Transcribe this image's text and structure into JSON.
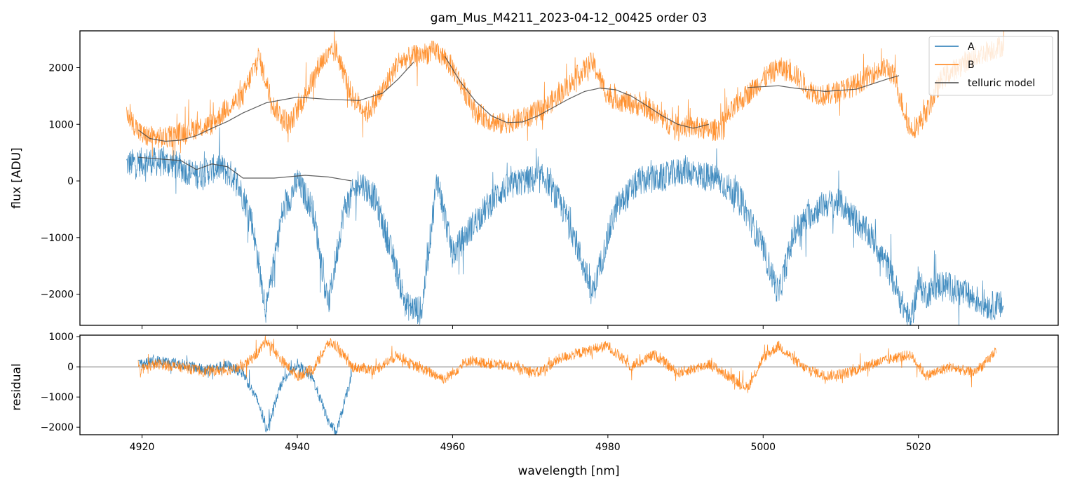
{
  "chart_data": [
    {
      "type": "line",
      "title": "gam_Mus_M4211_2023-04-12_00425  order 03",
      "ylabel": "flux [ADU]",
      "xlim": [
        4912,
        5038
      ],
      "ylim": [
        -2550,
        2650
      ],
      "yticks": [
        -2000,
        -1000,
        0,
        1000,
        2000
      ],
      "ytick_labels": [
        "−2000",
        "−1000",
        "0",
        "1000",
        "2000"
      ],
      "legend_position": "top-right",
      "legend": [
        "A",
        "B",
        "telluric model"
      ],
      "series": [
        {
          "name": "A",
          "color": "#1f77b4",
          "x": [
            4918,
            4921,
            4924,
            4927,
            4930,
            4932,
            4934,
            4936,
            4938,
            4940,
            4942,
            4944,
            4946,
            4948,
            4950,
            4952,
            4954,
            4956,
            4958,
            4960,
            4963,
            4966,
            4969,
            4972,
            4975,
            4978,
            4981,
            4984,
            4987,
            4990,
            4993,
            4994,
            4997,
            5000,
            5002,
            5004,
            5006,
            5008,
            5010,
            5012,
            5014,
            5016,
            5018,
            5019,
            5020,
            5021,
            5023,
            5026,
            5029,
            5031
          ],
          "y": [
            300,
            350,
            300,
            100,
            250,
            50,
            -600,
            -2300,
            -600,
            0,
            -500,
            -2200,
            -500,
            0,
            -300,
            -1200,
            -2200,
            -2300,
            50,
            -1300,
            -700,
            -200,
            0,
            50,
            -700,
            -2000,
            -500,
            0,
            50,
            200,
            50,
            50,
            -300,
            -1200,
            -2000,
            -900,
            -600,
            -400,
            -400,
            -700,
            -1000,
            -1500,
            -2200,
            -2500,
            -1800,
            -2000,
            -1800,
            -2000,
            -2200,
            -2200
          ],
          "noise": 260
        },
        {
          "name": "B",
          "color": "#ff7f0e",
          "x": [
            4918,
            4920,
            4923,
            4926,
            4929,
            4931,
            4933,
            4935,
            4937,
            4939,
            4941,
            4943,
            4945,
            4947,
            4949,
            4951,
            4953,
            4955,
            4958,
            4960,
            4963,
            4966,
            4969,
            4972,
            4975,
            4978,
            4980,
            4982,
            4985,
            4988,
            4991,
            4993,
            4994,
            4997,
            5000,
            5002,
            5004,
            5006,
            5008,
            5010,
            5012,
            5014,
            5016,
            5017,
            5018,
            5019,
            5020,
            5021,
            5023,
            5026,
            5029,
            5031
          ],
          "y": [
            1200,
            800,
            750,
            900,
            1000,
            1300,
            1500,
            2200,
            1300,
            1000,
            1500,
            2100,
            2300,
            1500,
            1200,
            1600,
            2100,
            2200,
            2300,
            2000,
            1200,
            1000,
            1100,
            1300,
            1700,
            2100,
            1500,
            1400,
            1300,
            1000,
            950,
            900,
            900,
            1400,
            1800,
            2000,
            1900,
            1600,
            1500,
            1600,
            1700,
            1900,
            2000,
            1800,
            1300,
            900,
            1000,
            1200,
            1800,
            2100,
            2300,
            2400
          ],
          "noise": 200
        },
        {
          "name": "telluric model",
          "color": "#444444",
          "segments": [
            {
              "x": [
                4919.5,
                4921,
                4923,
                4925,
                4927,
                4929,
                4931,
                4933,
                4936,
                4940,
                4944,
                4948,
                4951,
                4953,
                4955
              ],
              "y": [
                900,
                750,
                700,
                720,
                800,
                930,
                1050,
                1200,
                1380,
                1480,
                1440,
                1420,
                1550,
                1800,
                2100
              ]
            },
            {
              "x": [
                4959,
                4961,
                4963,
                4965,
                4967,
                4969,
                4971,
                4973,
                4975,
                4977,
                4979,
                4981,
                4983,
                4985,
                4987,
                4989,
                4991,
                4993
              ],
              "y": [
                2200,
                1750,
                1400,
                1150,
                1030,
                1040,
                1150,
                1300,
                1450,
                1580,
                1640,
                1610,
                1500,
                1330,
                1150,
                1000,
                930,
                1000
              ]
            },
            {
              "x": [
                4919.5,
                4921,
                4923,
                4925,
                4927,
                4929,
                4931,
                4933,
                4937,
                4941,
                4944,
                4947
              ],
              "y": [
                420,
                400,
                380,
                360,
                200,
                300,
                250,
                50,
                50,
                100,
                70,
                0
              ]
            },
            {
              "x": [
                4998,
                5002,
                5004,
                5008,
                5012,
                5016,
                5017.5
              ],
              "y": [
                1650,
                1680,
                1640,
                1580,
                1620,
                1800,
                1860
              ]
            }
          ]
        }
      ]
    },
    {
      "type": "line",
      "ylabel": "residual",
      "xlabel": "wavelength [nm]",
      "xlim": [
        4912,
        5038
      ],
      "ylim": [
        -2250,
        1050
      ],
      "xticks": [
        4920,
        4940,
        4960,
        4980,
        5000,
        5020
      ],
      "xtick_labels": [
        "4920",
        "4940",
        "4960",
        "4980",
        "5000",
        "5020"
      ],
      "yticks": [
        -2000,
        -1000,
        0,
        1000
      ],
      "ytick_labels": [
        "−2000",
        "−1000",
        "0",
        "1000"
      ],
      "zero_line": true,
      "series": [
        {
          "name": "A",
          "color": "#1f77b4",
          "x": [
            4919.5,
            4922,
            4925,
            4928,
            4931,
            4933,
            4935,
            4936,
            4938,
            4940,
            4942,
            4944,
            4945,
            4947
          ],
          "y": [
            100,
            200,
            100,
            -100,
            50,
            -200,
            -1200,
            -2100,
            -500,
            100,
            -400,
            -1800,
            -2200,
            -300
          ],
          "noise": 180
        },
        {
          "name": "B",
          "color": "#ff7f0e",
          "x": [
            4919.5,
            4922,
            4925,
            4928,
            4931,
            4933,
            4935,
            4936,
            4938,
            4940,
            4942,
            4944,
            4945,
            4947,
            4950,
            4953,
            4954.5,
            4959,
            4962,
            4965,
            4968,
            4971,
            4974,
            4977,
            4980,
            4983,
            4986,
            4989,
            4992,
            4993,
            4998,
            5000,
            5002,
            5005,
            5008,
            5011,
            5014,
            5017,
            5019,
            5021,
            5024,
            5027,
            5029,
            5030
          ],
          "y": [
            -100,
            100,
            0,
            -150,
            -100,
            0,
            500,
            900,
            200,
            -300,
            -100,
            800,
            700,
            0,
            -100,
            400,
            100,
            -400,
            200,
            100,
            0,
            -200,
            300,
            500,
            700,
            0,
            400,
            -200,
            0,
            100,
            -700,
            300,
            700,
            0,
            -300,
            -200,
            100,
            300,
            400,
            -300,
            0,
            -200,
            200,
            600
          ],
          "noise": 180
        }
      ]
    }
  ],
  "colors": {
    "A": "#1f77b4",
    "B": "#ff7f0e",
    "telluric": "#444444"
  }
}
